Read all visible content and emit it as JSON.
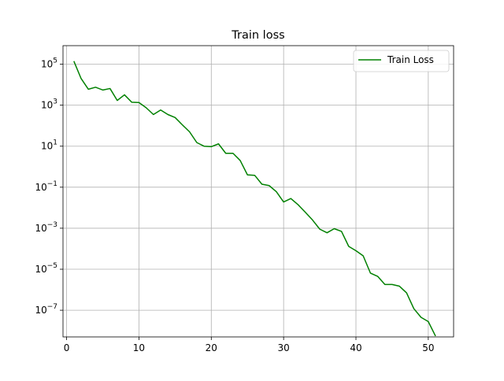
{
  "chart_data": {
    "type": "line",
    "title": "Train loss",
    "xlabel": "",
    "ylabel": "",
    "y_scale": "log",
    "xlim": [
      -0.5,
      53.5
    ],
    "ylim": [
      5e-09,
      800000.0
    ],
    "grid": true,
    "legend_position": "top-right",
    "x_ticks": [
      0,
      10,
      20,
      30,
      40,
      50
    ],
    "y_ticks": [
      {
        "value": 100000.0,
        "base": "10",
        "exp": "5"
      },
      {
        "value": 1000.0,
        "base": "10",
        "exp": "3"
      },
      {
        "value": 10.0,
        "base": "10",
        "exp": "1"
      },
      {
        "value": 0.1,
        "base": "10",
        "exp": "−1"
      },
      {
        "value": 0.001,
        "base": "10",
        "exp": "−3"
      },
      {
        "value": 1e-05,
        "base": "10",
        "exp": "−5"
      },
      {
        "value": 1e-07,
        "base": "10",
        "exp": "−7"
      }
    ],
    "series": [
      {
        "name": "Train Loss",
        "color": "#008000",
        "x": [
          1,
          2,
          3,
          4,
          5,
          6,
          7,
          8,
          9,
          10,
          11,
          12,
          13,
          14,
          15,
          16,
          17,
          18,
          19,
          20,
          21,
          22,
          23,
          24,
          25,
          26,
          27,
          28,
          29,
          30,
          31,
          32,
          33,
          34,
          35,
          36,
          37,
          38,
          39,
          40,
          41,
          42,
          43,
          44,
          45,
          46,
          47,
          48,
          49,
          50,
          51
        ],
        "y": [
          140000,
          20000,
          6000,
          7500,
          5500,
          6500,
          1700,
          3200,
          1400,
          1350,
          750,
          350,
          580,
          350,
          250,
          110,
          50,
          15,
          10,
          9.5,
          13,
          4.5,
          4.5,
          2,
          0.4,
          0.38,
          0.14,
          0.12,
          0.06,
          0.019,
          0.028,
          0.014,
          0.006,
          0.0025,
          0.0009,
          0.0006,
          0.00095,
          0.0007,
          0.00013,
          8e-05,
          4.5e-05,
          6.5e-06,
          4.5e-06,
          1.8e-06,
          1.8e-06,
          1.5e-06,
          7e-07,
          1.2e-07,
          4.5e-08,
          2.8e-08,
          5.5e-09
        ]
      }
    ]
  }
}
